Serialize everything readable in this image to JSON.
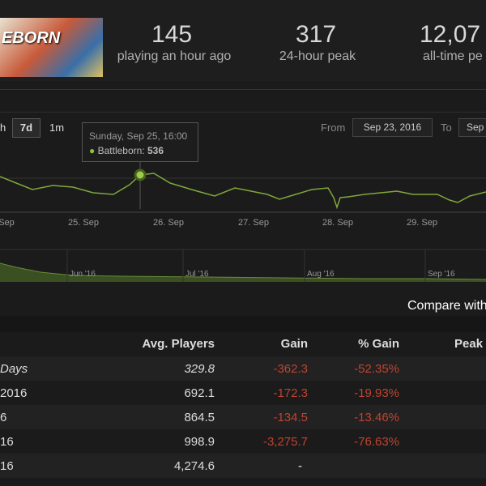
{
  "header": {
    "image_text": "EBORN",
    "stats": [
      {
        "value": "145",
        "label": "playing an hour ago"
      },
      {
        "value": "317",
        "label": "24-hour peak"
      },
      {
        "value": "12,07",
        "label": "all-time pe"
      }
    ]
  },
  "chart": {
    "zoom": [
      "h",
      "7d",
      "1m"
    ],
    "from_label": "From",
    "from_date": "Sep 23, 2016",
    "to_label": "To",
    "to_date": "Sep",
    "tooltip": {
      "date": "Sunday, Sep 25, 16:00",
      "series": "Battleborn:",
      "value": "536"
    },
    "x_labels": [
      "Sep",
      "25. Sep",
      "26. Sep",
      "27. Sep",
      "28. Sep",
      "29. Sep"
    ],
    "navigator_labels": [
      "Jun '16",
      "Jul '16",
      "Aug '16",
      "Sep '16"
    ]
  },
  "compare": "Compare with",
  "table": {
    "header": [
      "Avg. Players",
      "Gain",
      "% Gain",
      "Peak"
    ],
    "rows": [
      [
        "Days",
        "329.8",
        "-362.3",
        "-52.35%"
      ],
      [
        "2016",
        "692.1",
        "-172.3",
        "-19.93%"
      ],
      [
        "6",
        "864.5",
        "-134.5",
        "-13.46%"
      ],
      [
        "16",
        "998.9",
        "-3,275.7",
        "-76.63%"
      ],
      [
        "16",
        "4,274.6",
        "-",
        "-"
      ]
    ]
  }
}
